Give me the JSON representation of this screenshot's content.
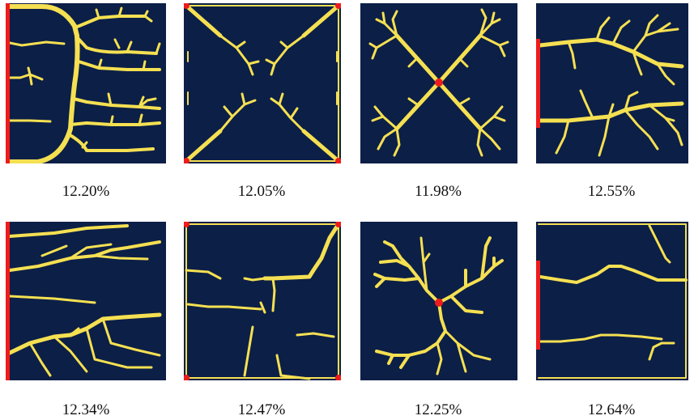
{
  "colors": {
    "background": "#0c1f47",
    "channel": "#f5e052",
    "source": "#ee1c1c",
    "page": "#ffffff"
  },
  "panels": [
    {
      "caption": "12.20%"
    },
    {
      "caption": "12.05%"
    },
    {
      "caption": "11.98%"
    },
    {
      "caption": "12.55%"
    },
    {
      "caption": "12.34%"
    },
    {
      "caption": "12.47%"
    },
    {
      "caption": "12.25%"
    },
    {
      "caption": "12.64%"
    }
  ]
}
